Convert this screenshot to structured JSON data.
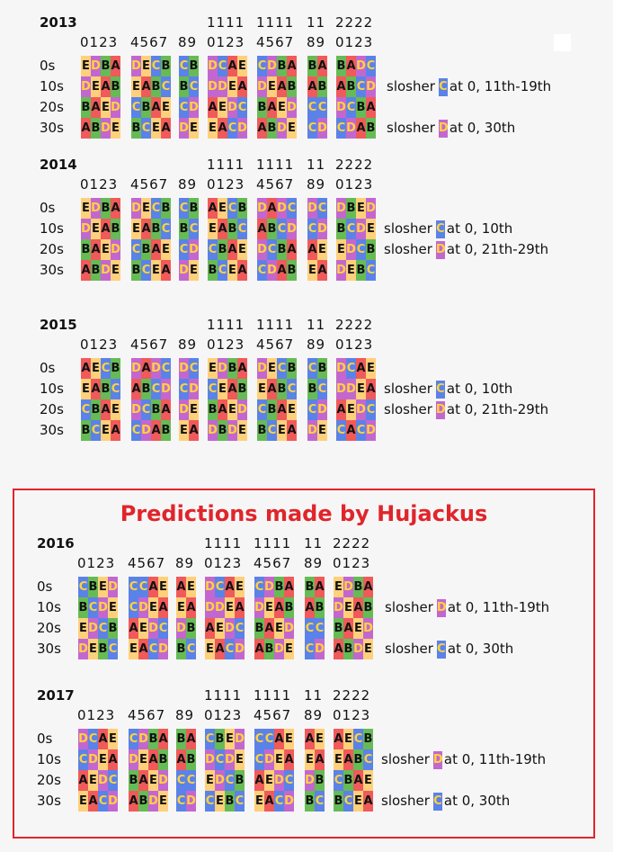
{
  "prediction_title": "Predictions made by Hujackus",
  "colors": {
    "A": "#f05a5a",
    "B": "#66bb55",
    "C": "#5b82e8",
    "D": "#c367d0",
    "E": "#ffd07a"
  },
  "header_top": [
    "",
    "",
    "1111",
    "1111",
    "11",
    "2222"
  ],
  "header_bottom": [
    "0123",
    "4567",
    "89",
    "0123",
    "4567",
    "89",
    "0123"
  ],
  "row_labels": [
    "0s",
    "10s",
    "20s",
    "30s"
  ],
  "years": [
    {
      "year": "2013",
      "rows": [
        [
          "EDBA",
          "DECB",
          "CB",
          "DCAE",
          "CDBA",
          "BA",
          "BADC"
        ],
        [
          "DEAB",
          "EABC",
          "BC",
          "DDEA",
          "DEAB",
          "AB",
          "ABCD"
        ],
        [
          "BAED",
          "CBAE",
          "CD",
          "AEDC",
          "BAED",
          "CC",
          "DCBA"
        ],
        [
          "ABDE",
          "BCEA",
          "DE",
          "EACD",
          "ABDE",
          "CD",
          "CDAB"
        ]
      ],
      "notes": [
        {
          "row": 1,
          "pre": "slosher",
          "letter": "C",
          "post": "at 0, 11th-19th"
        },
        {
          "row": 3,
          "pre": "slosher",
          "letter": "D",
          "post": "at 0, 30th"
        }
      ]
    },
    {
      "year": "2014",
      "rows": [
        [
          "EDBA",
          "DECB",
          "CB",
          "AECB",
          "DADC",
          "DC",
          "DBED"
        ],
        [
          "DEAB",
          "EABC",
          "BC",
          "EABC",
          "ABCD",
          "CD",
          "BCDE"
        ],
        [
          "BAED",
          "CBAE",
          "CD",
          "CBAE",
          "DCBA",
          "AE",
          "EDCB"
        ],
        [
          "ABDE",
          "BCEA",
          "DE",
          "BCEA",
          "CDAB",
          "EA",
          "DEBC"
        ]
      ],
      "notes": [
        {
          "row": 1,
          "pre": "slosher",
          "letter": "C",
          "post": "at 0, 10th"
        },
        {
          "row": 2,
          "pre": "slosher",
          "letter": "D",
          "post": "at 0, 21th-29th"
        }
      ]
    },
    {
      "year": "2015",
      "rows": [
        [
          "AECB",
          "DADC",
          "DC",
          "EDBA",
          "DECB",
          "CB",
          "DCAE"
        ],
        [
          "EABC",
          "ABCD",
          "CD",
          "CEAB",
          "EABC",
          "BC",
          "DDEA"
        ],
        [
          "CBAE",
          "DCBA",
          "DE",
          "BAED",
          "CBAE",
          "CD",
          "AEDC"
        ],
        [
          "BCEA",
          "CDAB",
          "EA",
          "DBDE",
          "BCEA",
          "DE",
          "CACD"
        ]
      ],
      "notes": [
        {
          "row": 1,
          "pre": "slosher",
          "letter": "C",
          "post": "at 0, 10th"
        },
        {
          "row": 2,
          "pre": "slosher",
          "letter": "D",
          "post": "at 0, 21th-29th"
        }
      ]
    },
    {
      "year": "2016",
      "rows": [
        [
          "CBED",
          "CCAE",
          "AE",
          "DCAE",
          "CDBA",
          "BA",
          "EDBA"
        ],
        [
          "BCDE",
          "CDEA",
          "EA",
          "DDEA",
          "DEAB",
          "AB",
          "DEAB"
        ],
        [
          "EDCB",
          "AEDC",
          "DB",
          "AEDC",
          "BAED",
          "CC",
          "BAED"
        ],
        [
          "DEBC",
          "EACD",
          "BC",
          "EACD",
          "ABDE",
          "CD",
          "ABDE"
        ]
      ],
      "notes": [
        {
          "row": 1,
          "pre": "slosher",
          "letter": "D",
          "post": "at 0, 11th-19th"
        },
        {
          "row": 3,
          "pre": "slosher",
          "letter": "C",
          "post": "at 0, 30th"
        }
      ]
    },
    {
      "year": "2017",
      "rows": [
        [
          "DCAE",
          "CDBA",
          "BA",
          "CBED",
          "CCAE",
          "AE",
          "AECB"
        ],
        [
          "CDEA",
          "DEAB",
          "AB",
          "DCDE",
          "CDEA",
          "EA",
          "EABC"
        ],
        [
          "AEDC",
          "BAED",
          "CC",
          "EDCB",
          "AEDC",
          "DB",
          "CBAE"
        ],
        [
          "EACD",
          "ABDE",
          "CD",
          "CEBC",
          "EACD",
          "BC",
          "BCEA"
        ]
      ],
      "notes": [
        {
          "row": 1,
          "pre": "slosher",
          "letter": "D",
          "post": "at 0, 11th-19th"
        },
        {
          "row": 3,
          "pre": "slosher",
          "letter": "C",
          "post": "at 0, 30th"
        }
      ]
    }
  ]
}
